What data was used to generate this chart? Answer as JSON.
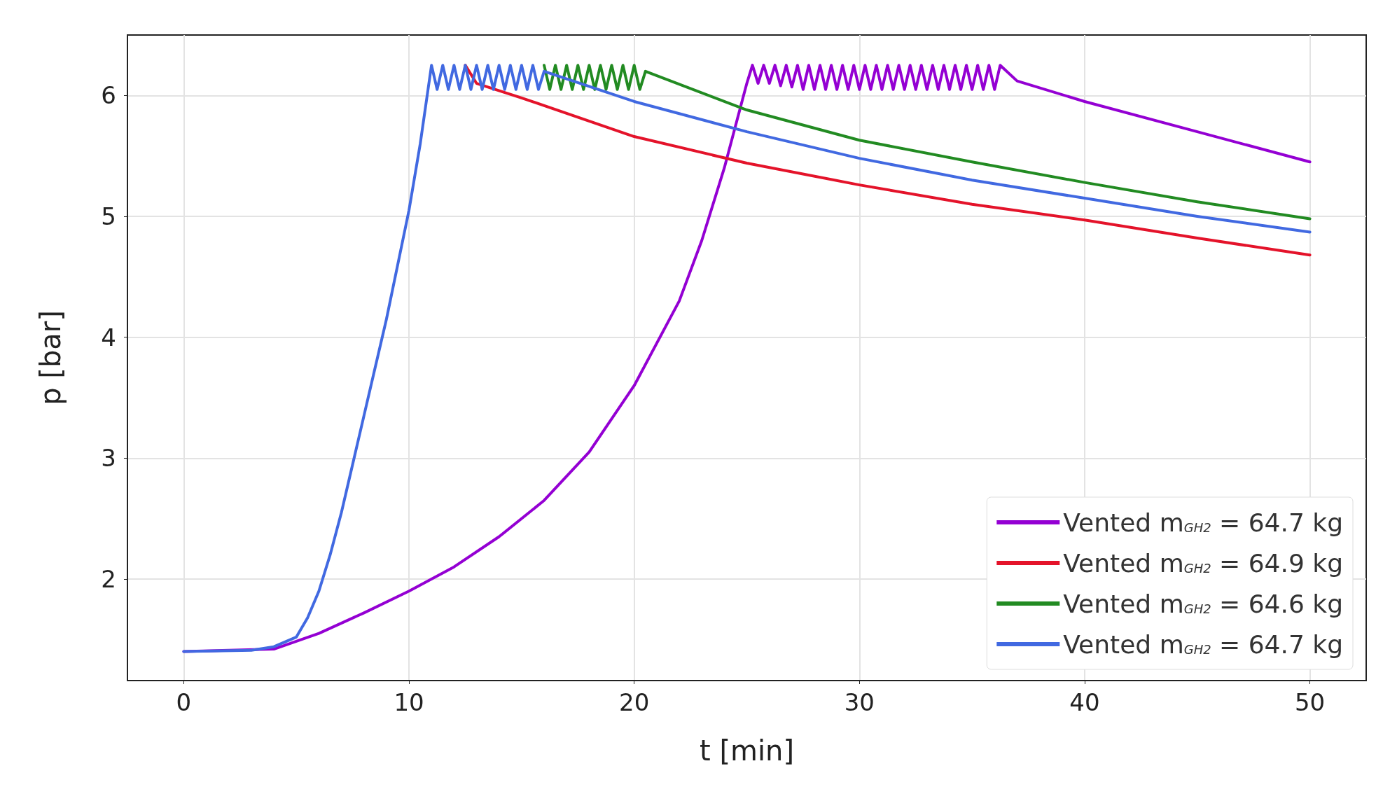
{
  "chart_data": {
    "type": "line",
    "xlabel": "t [min]",
    "ylabel": "p [bar]",
    "xlim": [
      -2.5,
      52.5
    ],
    "ylim": [
      1.16,
      6.5
    ],
    "xticks": [
      0,
      10,
      20,
      30,
      40,
      50
    ],
    "yticks": [
      2,
      3,
      4,
      5,
      6
    ],
    "grid": true,
    "legend": "bottom right",
    "marker": "none",
    "line_style": "solid",
    "series": [
      {
        "name": "Vented m$_{GH2}$ = 64.7 kg",
        "color": "#9400d3",
        "x": [
          0,
          4,
          6,
          8,
          10,
          12,
          14,
          16,
          18,
          20,
          22,
          23,
          24,
          25,
          25.25,
          25.5,
          25.75,
          26,
          26.25,
          26.5,
          26.75,
          27,
          27.25,
          27.5,
          27.75,
          28,
          28.25,
          28.5,
          28.75,
          29,
          29.25,
          29.5,
          29.75,
          30,
          30.25,
          30.5,
          30.75,
          31,
          31.25,
          31.5,
          31.75,
          32,
          32.25,
          32.5,
          32.75,
          33,
          33.25,
          33.5,
          33.75,
          34,
          34.25,
          34.5,
          34.75,
          35,
          35.25,
          35.5,
          35.75,
          36,
          36.25,
          37,
          40,
          45,
          50
        ],
        "values": [
          1.4,
          1.42,
          1.55,
          1.72,
          1.9,
          2.1,
          2.35,
          2.65,
          3.05,
          3.6,
          4.3,
          4.8,
          5.4,
          6.1,
          6.25,
          6.1,
          6.25,
          6.1,
          6.25,
          6.08,
          6.25,
          6.07,
          6.25,
          6.05,
          6.25,
          6.05,
          6.25,
          6.05,
          6.25,
          6.05,
          6.25,
          6.05,
          6.25,
          6.05,
          6.25,
          6.05,
          6.25,
          6.05,
          6.25,
          6.05,
          6.25,
          6.05,
          6.25,
          6.05,
          6.25,
          6.05,
          6.25,
          6.05,
          6.25,
          6.05,
          6.25,
          6.05,
          6.25,
          6.05,
          6.25,
          6.05,
          6.25,
          6.05,
          6.25,
          6.12,
          5.95,
          5.7,
          5.45
        ]
      },
      {
        "name": "Vented m$_{GH2}$ = 64.9 kg",
        "color": "#e4132a",
        "x": [
          12.5,
          13,
          15,
          20,
          25,
          30,
          35,
          40,
          45,
          50
        ],
        "values": [
          6.25,
          6.1,
          5.98,
          5.66,
          5.44,
          5.26,
          5.1,
          4.97,
          4.82,
          4.68
        ]
      },
      {
        "name": "Vented m$_{GH2}$ = 64.6 kg",
        "color": "#228b22",
        "x": [
          16,
          16.25,
          16.5,
          16.75,
          17,
          17.25,
          17.5,
          17.75,
          18,
          18.25,
          18.5,
          18.75,
          19,
          19.25,
          19.5,
          19.75,
          20,
          20.25,
          20.5,
          25,
          30,
          35,
          40,
          45,
          50
        ],
        "values": [
          6.25,
          6.05,
          6.25,
          6.05,
          6.25,
          6.05,
          6.25,
          6.05,
          6.25,
          6.05,
          6.25,
          6.05,
          6.25,
          6.05,
          6.25,
          6.05,
          6.25,
          6.05,
          6.2,
          5.88,
          5.63,
          5.45,
          5.28,
          5.12,
          4.98
        ]
      },
      {
        "name": "Vented m$_{GH2}$ = 64.7 kg",
        "color": "#4169e1",
        "x": [
          0,
          3,
          4,
          5,
          5.5,
          6,
          6.5,
          7,
          7.5,
          8,
          8.5,
          9,
          9.5,
          10,
          10.5,
          11,
          11.25,
          11.5,
          11.75,
          12,
          12.25,
          12.5,
          12.75,
          13,
          13.25,
          13.5,
          13.75,
          14,
          14.25,
          14.5,
          14.75,
          15,
          15.25,
          15.5,
          15.75,
          16,
          20,
          25,
          30,
          35,
          40,
          45,
          50
        ],
        "values": [
          1.4,
          1.41,
          1.44,
          1.52,
          1.68,
          1.9,
          2.2,
          2.55,
          2.95,
          3.35,
          3.75,
          4.15,
          4.6,
          5.05,
          5.6,
          6.25,
          6.05,
          6.25,
          6.05,
          6.25,
          6.05,
          6.25,
          6.05,
          6.25,
          6.05,
          6.25,
          6.05,
          6.25,
          6.05,
          6.25,
          6.05,
          6.25,
          6.05,
          6.25,
          6.05,
          6.2,
          5.95,
          5.7,
          5.48,
          5.3,
          5.15,
          5.0,
          4.87
        ]
      }
    ]
  }
}
